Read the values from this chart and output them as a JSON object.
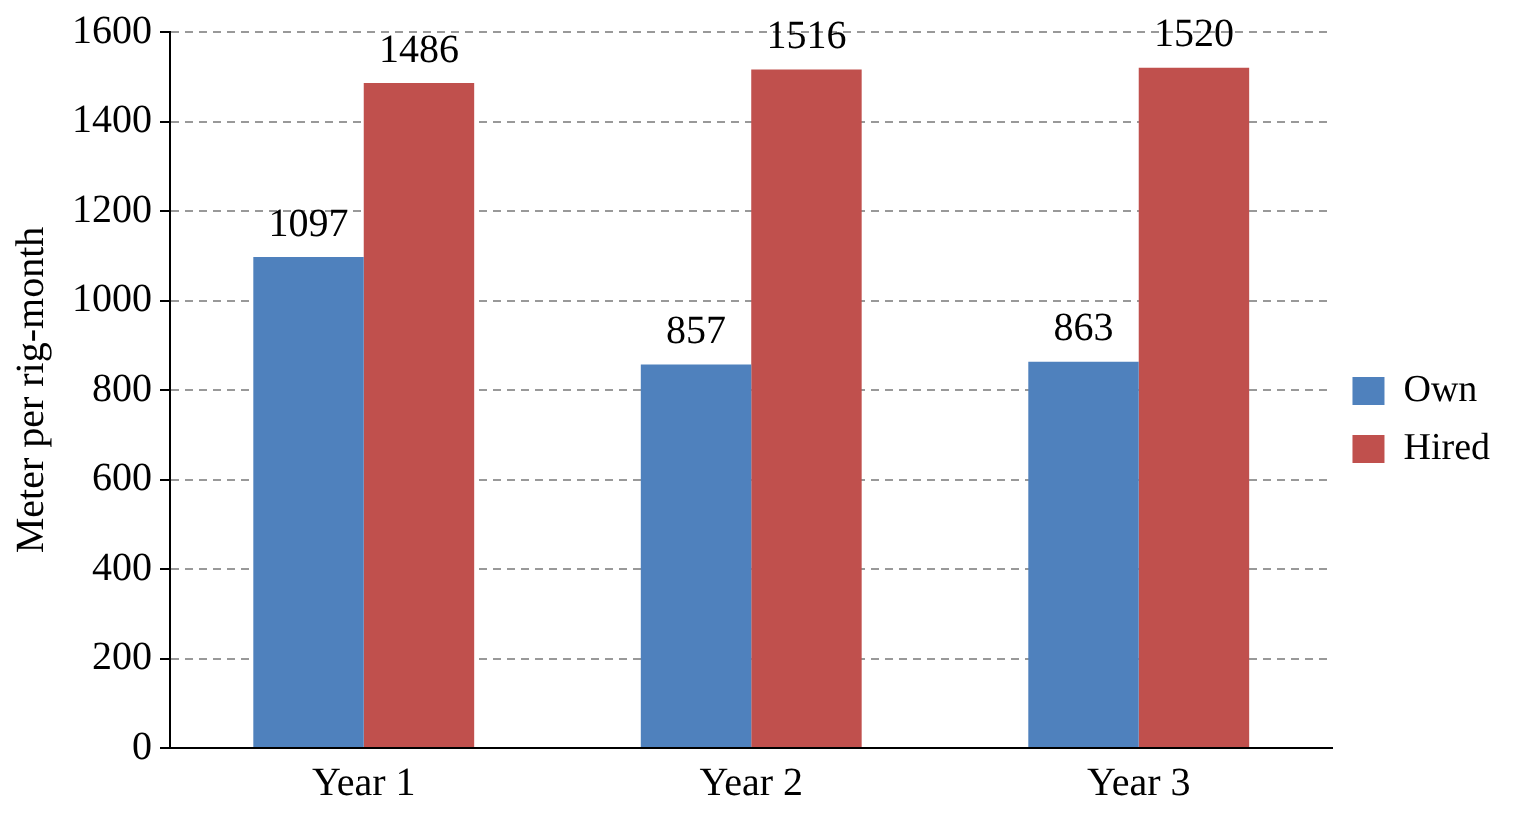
{
  "chart_data": {
    "type": "bar",
    "ylabel": "Meter per rig-month",
    "categories": [
      "Year 1",
      "Year 2",
      "Year 3"
    ],
    "series": [
      {
        "name": "Own",
        "color": "#4f81bd",
        "values": [
          1097,
          857,
          863
        ]
      },
      {
        "name": "Hired",
        "color": "#c0504d",
        "values": [
          1486,
          1516,
          1520
        ]
      }
    ],
    "ylim": [
      0,
      1600
    ],
    "yticks": [
      0,
      200,
      400,
      600,
      800,
      1000,
      1200,
      1400,
      1600
    ],
    "grid": "y",
    "legend": "right",
    "data_labels": true
  }
}
